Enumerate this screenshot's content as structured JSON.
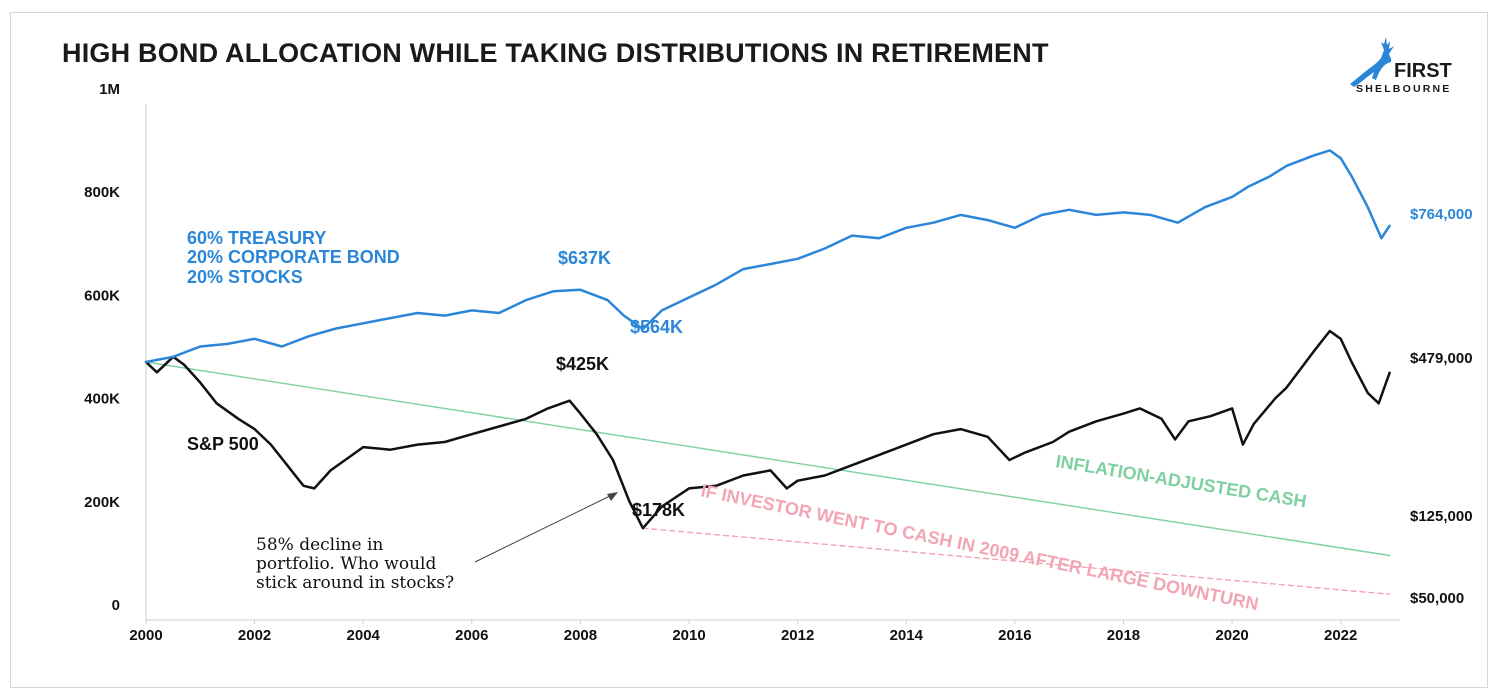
{
  "title": "HIGH BOND ALLOCATION WHILE TAKING DISTRIBUTIONS IN RETIREMENT",
  "logo": {
    "line1": "FIRST",
    "line2": "SHELBOURNE",
    "icon": "deer-icon",
    "color": "#2b86d8"
  },
  "colors": {
    "bond": "#2b86d8",
    "sp500": "#111111",
    "inflation": "#7fd0a0",
    "cash2009": "#f2a5b4"
  },
  "annotation": {
    "lines": [
      "58% decline in",
      "portfolio. Who would",
      "stick around in stocks?"
    ]
  },
  "chart_data": {
    "type": "line",
    "title": "HIGH BOND ALLOCATION WHILE TAKING DISTRIBUTIONS IN RETIREMENT",
    "xlabel": "",
    "ylabel": "",
    "xlim": [
      2000,
      2023
    ],
    "ylim": [
      0,
      1000000
    ],
    "grid": false,
    "x_ticks": [
      "2000",
      "2002",
      "2004",
      "2006",
      "2008",
      "2010",
      "2012",
      "2014",
      "2016",
      "2018",
      "2020",
      "2022"
    ],
    "y_ticks": [
      "0",
      "200K",
      "400K",
      "600K",
      "800K",
      "1M"
    ],
    "series": [
      {
        "key": "bond",
        "name": "60% TREASURY / 20% CORPORATE BOND / 20% STOCKS",
        "label_lines": [
          "60% TREASURY",
          "20% CORPORATE BOND",
          "20% STOCKS"
        ],
        "end_label": "$764,000",
        "style": "solid",
        "points": [
          [
            2000.0,
            500000
          ],
          [
            2000.5,
            510000
          ],
          [
            2001.0,
            530000
          ],
          [
            2001.5,
            535000
          ],
          [
            2002.0,
            545000
          ],
          [
            2002.5,
            530000
          ],
          [
            2003.0,
            550000
          ],
          [
            2003.5,
            565000
          ],
          [
            2004.0,
            575000
          ],
          [
            2004.5,
            585000
          ],
          [
            2005.0,
            595000
          ],
          [
            2005.5,
            590000
          ],
          [
            2006.0,
            600000
          ],
          [
            2006.5,
            595000
          ],
          [
            2007.0,
            620000
          ],
          [
            2007.5,
            637000
          ],
          [
            2008.0,
            640000
          ],
          [
            2008.5,
            620000
          ],
          [
            2008.8,
            590000
          ],
          [
            2009.15,
            564000
          ],
          [
            2009.5,
            600000
          ],
          [
            2010.0,
            625000
          ],
          [
            2010.5,
            650000
          ],
          [
            2011.0,
            680000
          ],
          [
            2011.5,
            690000
          ],
          [
            2012.0,
            700000
          ],
          [
            2012.5,
            720000
          ],
          [
            2013.0,
            745000
          ],
          [
            2013.5,
            740000
          ],
          [
            2014.0,
            760000
          ],
          [
            2014.5,
            770000
          ],
          [
            2015.0,
            785000
          ],
          [
            2015.5,
            775000
          ],
          [
            2016.0,
            760000
          ],
          [
            2016.5,
            785000
          ],
          [
            2017.0,
            795000
          ],
          [
            2017.5,
            785000
          ],
          [
            2018.0,
            790000
          ],
          [
            2018.5,
            785000
          ],
          [
            2019.0,
            770000
          ],
          [
            2019.5,
            800000
          ],
          [
            2020.0,
            820000
          ],
          [
            2020.3,
            840000
          ],
          [
            2020.7,
            860000
          ],
          [
            2021.0,
            880000
          ],
          [
            2021.5,
            900000
          ],
          [
            2021.8,
            910000
          ],
          [
            2022.0,
            895000
          ],
          [
            2022.2,
            860000
          ],
          [
            2022.5,
            800000
          ],
          [
            2022.75,
            740000
          ],
          [
            2022.9,
            764000
          ]
        ]
      },
      {
        "key": "sp500",
        "name": "S&P 500",
        "label_lines": [
          "S&P 500"
        ],
        "end_label": "$479,000",
        "style": "solid",
        "points": [
          [
            2000.0,
            500000
          ],
          [
            2000.2,
            480000
          ],
          [
            2000.5,
            510000
          ],
          [
            2000.7,
            495000
          ],
          [
            2001.0,
            460000
          ],
          [
            2001.3,
            420000
          ],
          [
            2001.7,
            390000
          ],
          [
            2002.0,
            370000
          ],
          [
            2002.3,
            340000
          ],
          [
            2002.6,
            300000
          ],
          [
            2002.9,
            260000
          ],
          [
            2003.1,
            255000
          ],
          [
            2003.4,
            290000
          ],
          [
            2003.8,
            320000
          ],
          [
            2004.0,
            335000
          ],
          [
            2004.5,
            330000
          ],
          [
            2005.0,
            340000
          ],
          [
            2005.5,
            345000
          ],
          [
            2006.0,
            360000
          ],
          [
            2006.5,
            375000
          ],
          [
            2007.0,
            390000
          ],
          [
            2007.4,
            410000
          ],
          [
            2007.8,
            425000
          ],
          [
            2008.0,
            400000
          ],
          [
            2008.3,
            360000
          ],
          [
            2008.6,
            310000
          ],
          [
            2008.9,
            230000
          ],
          [
            2009.15,
            178000
          ],
          [
            2009.5,
            220000
          ],
          [
            2010.0,
            255000
          ],
          [
            2010.5,
            260000
          ],
          [
            2011.0,
            280000
          ],
          [
            2011.5,
            290000
          ],
          [
            2011.8,
            255000
          ],
          [
            2012.0,
            270000
          ],
          [
            2012.5,
            280000
          ],
          [
            2013.0,
            300000
          ],
          [
            2013.5,
            320000
          ],
          [
            2014.0,
            340000
          ],
          [
            2014.5,
            360000
          ],
          [
            2015.0,
            370000
          ],
          [
            2015.5,
            355000
          ],
          [
            2015.9,
            310000
          ],
          [
            2016.2,
            325000
          ],
          [
            2016.7,
            345000
          ],
          [
            2017.0,
            365000
          ],
          [
            2017.5,
            385000
          ],
          [
            2018.0,
            400000
          ],
          [
            2018.3,
            410000
          ],
          [
            2018.7,
            390000
          ],
          [
            2018.95,
            350000
          ],
          [
            2019.2,
            385000
          ],
          [
            2019.6,
            395000
          ],
          [
            2020.0,
            410000
          ],
          [
            2020.2,
            340000
          ],
          [
            2020.4,
            380000
          ],
          [
            2020.8,
            430000
          ],
          [
            2021.0,
            450000
          ],
          [
            2021.5,
            520000
          ],
          [
            2021.8,
            560000
          ],
          [
            2022.0,
            545000
          ],
          [
            2022.2,
            500000
          ],
          [
            2022.5,
            440000
          ],
          [
            2022.7,
            420000
          ],
          [
            2022.9,
            479000
          ]
        ]
      },
      {
        "key": "inflation",
        "name": "INFLATION-ADJUSTED CASH",
        "label_lines": [
          "INFLATION-ADJUSTED CASH"
        ],
        "end_label": "$125,000",
        "style": "solid",
        "points": [
          [
            2000.0,
            500000
          ],
          [
            2022.9,
            125000
          ]
        ]
      },
      {
        "key": "cash2009",
        "name": "IF INVESTOR WENT TO CASH IN 2009 AFTER LARGE DOWNTURN",
        "label_lines": [
          "IF INVESTOR WENT TO CASH IN 2009 AFTER LARGE DOWNTURN"
        ],
        "end_label": "$50,000",
        "style": "dashed",
        "points": [
          [
            2009.15,
            178000
          ],
          [
            2022.9,
            50000
          ]
        ]
      }
    ],
    "annotations": [
      {
        "text": "$637K",
        "series": "bond",
        "x": 2007.5,
        "y": 637000
      },
      {
        "text": "$564K",
        "series": "bond",
        "x": 2009.15,
        "y": 564000
      },
      {
        "text": "$425K",
        "series": "sp500",
        "x": 2007.8,
        "y": 425000
      },
      {
        "text": "$178K",
        "series": "sp500",
        "x": 2009.15,
        "y": 178000
      }
    ]
  }
}
